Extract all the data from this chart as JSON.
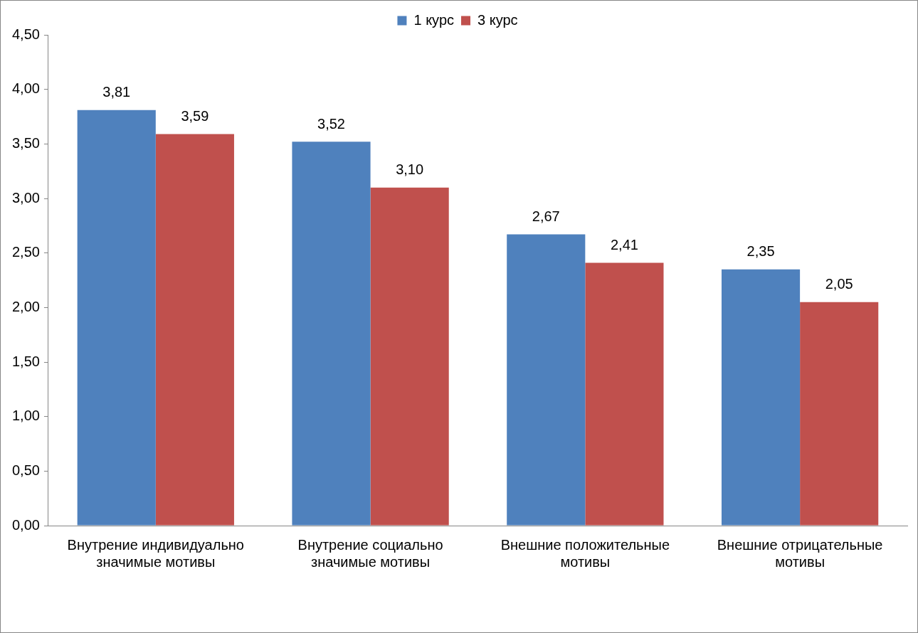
{
  "chart_data": {
    "type": "bar",
    "categories": [
      "Внутрение индивидуально значимые мотивы",
      "Внутрение социально значимые мотивы",
      "Внешние положительные мотивы",
      "Внешние отрицательные мотивы"
    ],
    "series": [
      {
        "name": "1 курс",
        "color": "#4f81bd",
        "values": [
          3.81,
          3.52,
          2.67,
          2.35
        ],
        "value_labels": [
          "3,81",
          "3,52",
          "2,67",
          "2,35"
        ]
      },
      {
        "name": "3 курс",
        "color": "#c0504d",
        "values": [
          3.59,
          3.1,
          2.41,
          2.05
        ],
        "value_labels": [
          "3,59",
          "3,10",
          "2,41",
          "2,05"
        ]
      }
    ],
    "ylim": [
      0,
      4.5
    ],
    "yticks": [
      {
        "value": 0,
        "label": "0,00"
      },
      {
        "value": 0.5,
        "label": "0,50"
      },
      {
        "value": 1,
        "label": "1,00"
      },
      {
        "value": 1.5,
        "label": "1,50"
      },
      {
        "value": 2,
        "label": "2,00"
      },
      {
        "value": 2.5,
        "label": "2,50"
      },
      {
        "value": 3,
        "label": "3,00"
      },
      {
        "value": 3.5,
        "label": "3,50"
      },
      {
        "value": 4,
        "label": "4,00"
      },
      {
        "value": 4.5,
        "label": "4,50"
      }
    ],
    "grid": false,
    "legend": "top"
  }
}
